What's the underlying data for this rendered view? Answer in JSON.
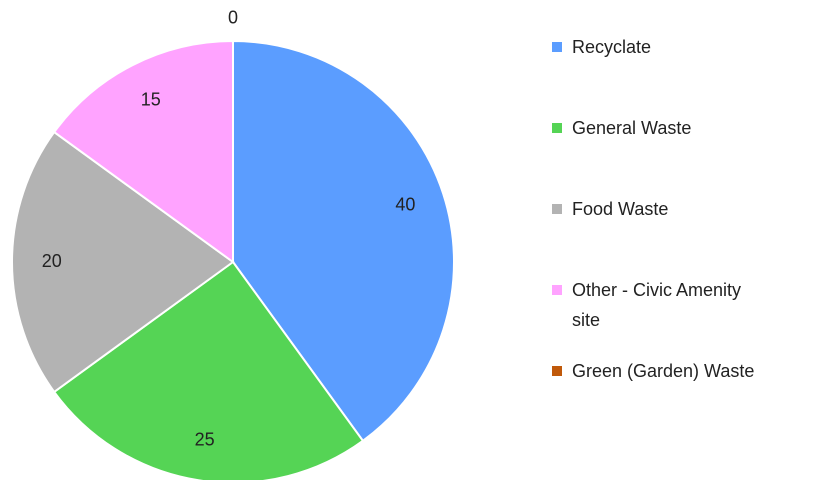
{
  "chart_data": {
    "type": "pie",
    "categories": [
      "Recyclate",
      "General Waste",
      "Food Waste",
      "Other - Civic Amenity site",
      "Green (Garden) Waste"
    ],
    "values": [
      40,
      25,
      20,
      15,
      0
    ],
    "colors": [
      "#5b9dff",
      "#55d455",
      "#b3b3b3",
      "#ffa3ff",
      "#c0590a"
    ],
    "legend": "right"
  }
}
